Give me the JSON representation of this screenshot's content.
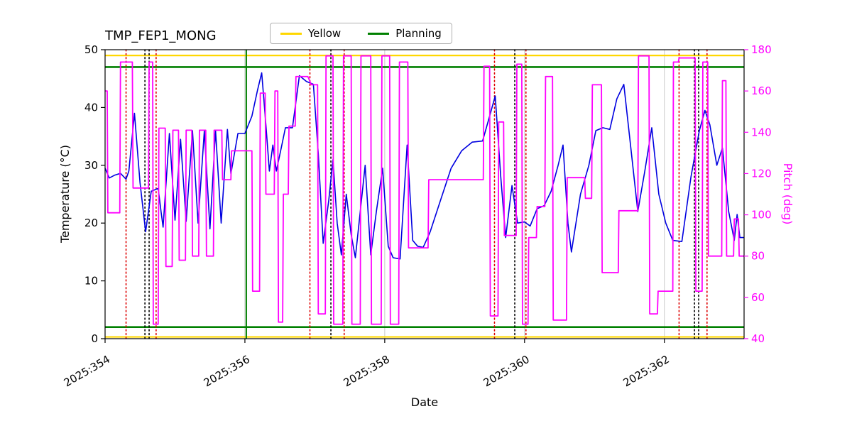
{
  "figure": {
    "title": "TMP_FEP1_MONG"
  },
  "legend": {
    "items": [
      {
        "label": "Yellow",
        "color": "#ffd700"
      },
      {
        "label": "Planning",
        "color": "#008000"
      }
    ]
  },
  "chart_data": {
    "type": "line",
    "title": "TMP_FEP1_MONG",
    "xlabel": "Date",
    "ylabel_left": "Temperature (°C)",
    "ylabel_right": "Pitch (deg)",
    "xlim": [
      354.0,
      363.14
    ],
    "ylim_left": [
      0,
      50
    ],
    "ylim_right": [
      40,
      180
    ],
    "grid": {
      "vertical": true,
      "horizontal": false,
      "color": "#c8c8c8"
    },
    "legend_position": "top-center",
    "x_ticks": [
      {
        "value": 354,
        "label": "2025:354"
      },
      {
        "value": 356,
        "label": "2025:356"
      },
      {
        "value": 358,
        "label": "2025:358"
      },
      {
        "value": 360,
        "label": "2025:360"
      },
      {
        "value": 362,
        "label": "2025:362"
      }
    ],
    "y_ticks_left": [
      0,
      10,
      20,
      30,
      40,
      50
    ],
    "y_ticks_right": [
      40,
      60,
      80,
      100,
      120,
      140,
      160,
      180
    ],
    "series": [
      {
        "name": "Temperature",
        "axis": "left",
        "color": "#0000e0",
        "width": 1.6,
        "points": [
          [
            354.0,
            29.5
          ],
          [
            354.06,
            27.8
          ],
          [
            354.14,
            28.3
          ],
          [
            354.22,
            28.6
          ],
          [
            354.3,
            27.6
          ],
          [
            354.34,
            29.0
          ],
          [
            354.42,
            39.0
          ],
          [
            354.5,
            27.0
          ],
          [
            354.58,
            18.5
          ],
          [
            354.66,
            25.5
          ],
          [
            354.76,
            26.0
          ],
          [
            354.8,
            22.0
          ],
          [
            354.83,
            19.3
          ],
          [
            354.92,
            35.5
          ],
          [
            355.0,
            20.5
          ],
          [
            355.08,
            34.5
          ],
          [
            355.16,
            20.3
          ],
          [
            355.25,
            36.0
          ],
          [
            355.33,
            20.0
          ],
          [
            355.42,
            36.0
          ],
          [
            355.5,
            19.0
          ],
          [
            355.58,
            36.0
          ],
          [
            355.66,
            20.0
          ],
          [
            355.75,
            36.2
          ],
          [
            355.8,
            28.5
          ],
          [
            355.9,
            35.5
          ],
          [
            356.0,
            35.5
          ],
          [
            356.1,
            38.5
          ],
          [
            356.18,
            43.0
          ],
          [
            356.24,
            46.0
          ],
          [
            356.3,
            37.0
          ],
          [
            356.35,
            29.0
          ],
          [
            356.4,
            33.5
          ],
          [
            356.45,
            29.0
          ],
          [
            356.52,
            33.0
          ],
          [
            356.58,
            36.5
          ],
          [
            356.68,
            36.5
          ],
          [
            356.78,
            45.5
          ],
          [
            356.88,
            44.5
          ],
          [
            356.98,
            44.0
          ],
          [
            357.05,
            32.0
          ],
          [
            357.12,
            16.5
          ],
          [
            357.2,
            24.0
          ],
          [
            357.26,
            31.0
          ],
          [
            357.32,
            20.0
          ],
          [
            357.38,
            14.5
          ],
          [
            357.45,
            25.0
          ],
          [
            357.52,
            18.0
          ],
          [
            357.58,
            14.0
          ],
          [
            357.65,
            22.0
          ],
          [
            357.72,
            30.0
          ],
          [
            357.8,
            14.5
          ],
          [
            357.88,
            22.0
          ],
          [
            357.97,
            29.5
          ],
          [
            358.05,
            16.0
          ],
          [
            358.12,
            14.0
          ],
          [
            358.22,
            13.8
          ],
          [
            358.32,
            33.5
          ],
          [
            358.4,
            17.0
          ],
          [
            358.47,
            16.0
          ],
          [
            358.55,
            15.8
          ],
          [
            358.65,
            18.5
          ],
          [
            358.8,
            24.0
          ],
          [
            358.95,
            29.5
          ],
          [
            359.1,
            32.5
          ],
          [
            359.25,
            34.0
          ],
          [
            359.4,
            34.2
          ],
          [
            359.5,
            38.5
          ],
          [
            359.58,
            42.0
          ],
          [
            359.66,
            28.0
          ],
          [
            359.73,
            17.5
          ],
          [
            359.82,
            26.5
          ],
          [
            359.9,
            20.0
          ],
          [
            360.0,
            20.2
          ],
          [
            360.08,
            19.5
          ],
          [
            360.18,
            22.5
          ],
          [
            360.28,
            23.0
          ],
          [
            360.38,
            25.5
          ],
          [
            360.48,
            30.0
          ],
          [
            360.55,
            33.5
          ],
          [
            360.62,
            20.0
          ],
          [
            360.67,
            15.0
          ],
          [
            360.8,
            25.0
          ],
          [
            360.92,
            30.0
          ],
          [
            361.02,
            36.0
          ],
          [
            361.12,
            36.5
          ],
          [
            361.22,
            36.2
          ],
          [
            361.32,
            41.5
          ],
          [
            361.42,
            44.0
          ],
          [
            361.52,
            33.0
          ],
          [
            361.62,
            22.0
          ],
          [
            361.72,
            29.0
          ],
          [
            361.82,
            36.5
          ],
          [
            361.92,
            25.0
          ],
          [
            362.02,
            20.0
          ],
          [
            362.12,
            17.0
          ],
          [
            362.25,
            16.8
          ],
          [
            362.38,
            28.0
          ],
          [
            362.5,
            36.0
          ],
          [
            362.58,
            39.5
          ],
          [
            362.65,
            37.0
          ],
          [
            362.75,
            30.0
          ],
          [
            362.83,
            33.0
          ],
          [
            362.92,
            22.0
          ],
          [
            363.0,
            17.0
          ],
          [
            363.04,
            21.5
          ],
          [
            363.08,
            17.5
          ],
          [
            363.14,
            17.5
          ]
        ]
      },
      {
        "name": "Pitch",
        "axis": "right",
        "color": "#ff00ff",
        "width": 1.8,
        "points": [
          [
            354.0,
            160
          ],
          [
            354.03,
            160
          ],
          [
            354.04,
            101
          ],
          [
            354.21,
            101
          ],
          [
            354.22,
            174
          ],
          [
            354.39,
            174
          ],
          [
            354.4,
            113
          ],
          [
            354.62,
            113
          ],
          [
            354.63,
            174
          ],
          [
            354.68,
            174
          ],
          [
            354.69,
            47
          ],
          [
            354.76,
            47
          ],
          [
            354.77,
            142
          ],
          [
            354.86,
            142
          ],
          [
            354.87,
            75
          ],
          [
            354.96,
            75
          ],
          [
            354.97,
            141
          ],
          [
            355.05,
            141
          ],
          [
            355.06,
            78
          ],
          [
            355.15,
            78
          ],
          [
            355.16,
            141
          ],
          [
            355.24,
            141
          ],
          [
            355.25,
            80
          ],
          [
            355.34,
            80
          ],
          [
            355.35,
            141
          ],
          [
            355.44,
            141
          ],
          [
            355.45,
            80
          ],
          [
            355.55,
            80
          ],
          [
            355.56,
            141
          ],
          [
            355.67,
            141
          ],
          [
            355.68,
            117
          ],
          [
            355.8,
            117
          ],
          [
            355.81,
            131
          ],
          [
            356.1,
            131
          ],
          [
            356.11,
            63
          ],
          [
            356.21,
            63
          ],
          [
            356.22,
            159
          ],
          [
            356.29,
            159
          ],
          [
            356.3,
            110
          ],
          [
            356.42,
            110
          ],
          [
            356.43,
            160
          ],
          [
            356.47,
            160
          ],
          [
            356.48,
            48
          ],
          [
            356.54,
            48
          ],
          [
            356.55,
            110
          ],
          [
            356.62,
            110
          ],
          [
            356.63,
            143
          ],
          [
            356.72,
            143
          ],
          [
            356.73,
            167
          ],
          [
            356.9,
            167
          ],
          [
            356.95,
            163
          ],
          [
            357.04,
            163
          ],
          [
            357.05,
            52
          ],
          [
            357.15,
            52
          ],
          [
            357.16,
            177
          ],
          [
            357.26,
            177
          ],
          [
            357.27,
            47
          ],
          [
            357.4,
            47
          ],
          [
            357.41,
            177
          ],
          [
            357.52,
            177
          ],
          [
            357.53,
            47
          ],
          [
            357.65,
            47
          ],
          [
            357.66,
            177
          ],
          [
            357.8,
            177
          ],
          [
            357.81,
            47
          ],
          [
            357.95,
            47
          ],
          [
            357.96,
            177
          ],
          [
            358.07,
            177
          ],
          [
            358.08,
            47
          ],
          [
            358.2,
            47
          ],
          [
            358.21,
            174
          ],
          [
            358.33,
            174
          ],
          [
            358.34,
            84
          ],
          [
            358.62,
            84
          ],
          [
            358.63,
            117
          ],
          [
            359.41,
            117
          ],
          [
            359.42,
            172
          ],
          [
            359.5,
            172
          ],
          [
            359.51,
            51
          ],
          [
            359.62,
            51
          ],
          [
            359.63,
            145
          ],
          [
            359.7,
            145
          ],
          [
            359.71,
            90
          ],
          [
            359.88,
            90
          ],
          [
            359.89,
            173
          ],
          [
            359.96,
            173
          ],
          [
            359.97,
            47
          ],
          [
            360.05,
            47
          ],
          [
            360.06,
            89
          ],
          [
            360.17,
            89
          ],
          [
            360.18,
            104
          ],
          [
            360.29,
            104
          ],
          [
            360.3,
            167
          ],
          [
            360.4,
            167
          ],
          [
            360.41,
            49
          ],
          [
            360.6,
            49
          ],
          [
            360.61,
            118
          ],
          [
            360.86,
            118
          ],
          [
            360.87,
            108
          ],
          [
            360.96,
            108
          ],
          [
            360.97,
            163
          ],
          [
            361.1,
            163
          ],
          [
            361.11,
            72
          ],
          [
            361.34,
            72
          ],
          [
            361.35,
            102
          ],
          [
            361.62,
            102
          ],
          [
            361.63,
            177
          ],
          [
            361.78,
            177
          ],
          [
            361.79,
            52
          ],
          [
            361.9,
            52
          ],
          [
            361.91,
            63
          ],
          [
            362.12,
            63
          ],
          [
            362.13,
            174
          ],
          [
            362.2,
            174
          ],
          [
            362.21,
            176
          ],
          [
            362.44,
            176
          ],
          [
            362.45,
            63
          ],
          [
            362.54,
            63
          ],
          [
            362.55,
            174
          ],
          [
            362.62,
            174
          ],
          [
            362.63,
            80
          ],
          [
            362.82,
            80
          ],
          [
            362.83,
            165
          ],
          [
            362.88,
            165
          ],
          [
            362.89,
            80
          ],
          [
            362.99,
            80
          ],
          [
            363.0,
            98
          ],
          [
            363.06,
            98
          ],
          [
            363.07,
            80
          ],
          [
            363.14,
            80
          ]
        ]
      }
    ],
    "reference_lines": {
      "horizontal": [
        {
          "y": 49.0,
          "axis": "left",
          "color": "#ffd700",
          "width": 2.2,
          "style": "solid",
          "name": "yellow-limit-high"
        },
        {
          "y": 0.3,
          "axis": "left",
          "color": "#ffd700",
          "width": 2.2,
          "style": "solid",
          "name": "yellow-limit-low"
        },
        {
          "y": 47.0,
          "axis": "left",
          "color": "#008000",
          "width": 2.6,
          "style": "solid",
          "name": "planning-limit-high"
        },
        {
          "y": 2.0,
          "axis": "left",
          "color": "#008000",
          "width": 2.6,
          "style": "solid",
          "name": "planning-limit-low"
        }
      ],
      "vertical": [
        {
          "x": 356.02,
          "color": "#008000",
          "width": 2.0,
          "style": "solid",
          "name": "green-event-line"
        },
        {
          "x": 354.3,
          "color": "#dd0000",
          "width": 1.6,
          "style": "dotted",
          "name": "red-event-line"
        },
        {
          "x": 354.73,
          "color": "#dd0000",
          "width": 1.6,
          "style": "dotted",
          "name": "red-event-line"
        },
        {
          "x": 356.93,
          "color": "#dd0000",
          "width": 1.6,
          "style": "dotted",
          "name": "red-event-line"
        },
        {
          "x": 357.42,
          "color": "#dd0000",
          "width": 1.6,
          "style": "dotted",
          "name": "red-event-line"
        },
        {
          "x": 359.57,
          "color": "#dd0000",
          "width": 1.6,
          "style": "dotted",
          "name": "red-event-line"
        },
        {
          "x": 360.02,
          "color": "#dd0000",
          "width": 1.6,
          "style": "dotted",
          "name": "red-event-line"
        },
        {
          "x": 362.21,
          "color": "#dd0000",
          "width": 1.6,
          "style": "dotted",
          "name": "red-event-line"
        },
        {
          "x": 362.61,
          "color": "#dd0000",
          "width": 1.6,
          "style": "dotted",
          "name": "red-event-line"
        },
        {
          "x": 354.57,
          "color": "#000000",
          "width": 1.6,
          "style": "dotted",
          "name": "black-event-line"
        },
        {
          "x": 354.63,
          "color": "#000000",
          "width": 1.6,
          "style": "dotted",
          "name": "black-event-line"
        },
        {
          "x": 357.23,
          "color": "#000000",
          "width": 1.6,
          "style": "dotted",
          "name": "black-event-line"
        },
        {
          "x": 359.86,
          "color": "#000000",
          "width": 1.6,
          "style": "dotted",
          "name": "black-event-line"
        },
        {
          "x": 362.43,
          "color": "#000000",
          "width": 1.6,
          "style": "dotted",
          "name": "black-event-line"
        },
        {
          "x": 362.49,
          "color": "#000000",
          "width": 1.6,
          "style": "dotted",
          "name": "black-event-line"
        }
      ]
    }
  }
}
